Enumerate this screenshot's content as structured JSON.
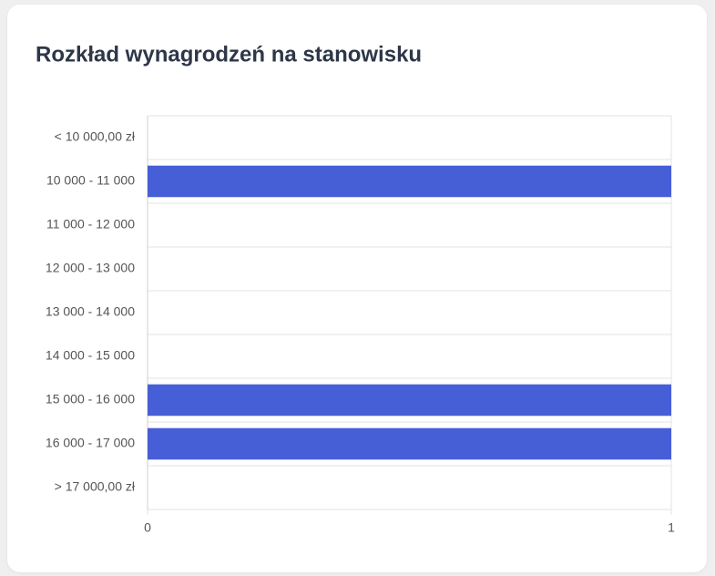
{
  "chart_data": {
    "type": "bar",
    "orientation": "horizontal",
    "title": "Rozkład wynagrodzeń na stanowisku",
    "categories": [
      "< 10 000,00 zł",
      "10 000 - 11 000",
      "11 000 - 12 000",
      "12 000 - 13 000",
      "13 000 - 14 000",
      "14 000 - 15 000",
      "15 000 - 16 000",
      "16 000 - 17 000",
      "> 17 000,00 zł"
    ],
    "values": [
      0,
      1,
      0,
      0,
      0,
      0,
      1,
      1,
      0
    ],
    "color": "#465fd6",
    "xlim": [
      0,
      1
    ],
    "xticks": [
      0,
      1
    ],
    "grid": true
  }
}
